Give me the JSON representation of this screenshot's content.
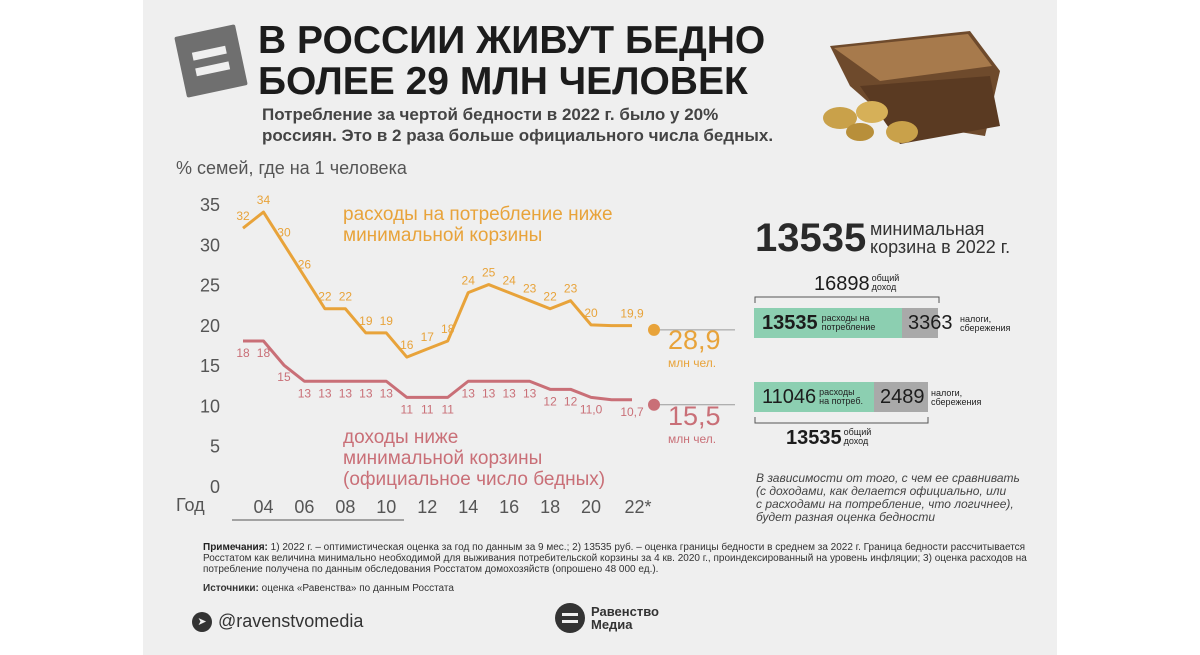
{
  "header": {
    "title": "В РОССИИ ЖИВУТ БЕДНО\nБОЛЕЕ 29 МЛН ЧЕЛОВЕК",
    "subtitle": "Потребление за чертой бедности в 2022 г. было у 20%\nроссиян. Это в 2 раза больше официального числа бедных."
  },
  "colors": {
    "orange": "#e8a33a",
    "red": "#c96f77",
    "green": "#8ccfb1",
    "grey": "#a9a9a9"
  },
  "chart_data": {
    "type": "line",
    "ylabel": "% семей, где на 1 человека",
    "xlabel": "Год",
    "ylim": [
      0,
      35
    ],
    "yticks": [
      "0",
      "5",
      "10",
      "15",
      "20",
      "25",
      "30",
      "35"
    ],
    "xticks": [
      "04",
      "06",
      "08",
      "10",
      "12",
      "14",
      "16",
      "18",
      "20",
      "22*"
    ],
    "x": [
      2003,
      2004,
      2005,
      2006,
      2007,
      2008,
      2009,
      2010,
      2011,
      2012,
      2013,
      2014,
      2015,
      2016,
      2017,
      2018,
      2019,
      2020,
      2021,
      2022
    ],
    "series": [
      {
        "name": "расходы на потребление ниже\nминимальной корзины",
        "color": "#e8a33a",
        "values": [
          32,
          34,
          30,
          26,
          22,
          22,
          19,
          19,
          16,
          17,
          18,
          24,
          25,
          24,
          23,
          22,
          23,
          20,
          19.9,
          19.9
        ],
        "point_labels": [
          "32",
          "34",
          "30",
          "26",
          "22",
          "22",
          "19",
          "19",
          "16",
          "17",
          "18",
          "24",
          "25",
          "24",
          "23",
          "22",
          "23",
          "20",
          "",
          "19,9"
        ],
        "end_value": "28,9",
        "end_unit": "млн чел."
      },
      {
        "name": "доходы ниже\nминимальной корзины\n(официальное число бедных)",
        "color": "#c96f77",
        "values": [
          18,
          18,
          15,
          13,
          13,
          13,
          13,
          13,
          11,
          11,
          11,
          13,
          13,
          13,
          13,
          12,
          12,
          11.0,
          10.7,
          10.7
        ],
        "point_labels": [
          "18",
          "18",
          "15",
          "13",
          "13",
          "13",
          "13",
          "13",
          "11",
          "11",
          "11",
          "13",
          "13",
          "13",
          "13",
          "12",
          "12",
          "11,0",
          "",
          "10,7"
        ],
        "end_value": "15,5",
        "end_unit": "млн чел."
      }
    ]
  },
  "side": {
    "big_value": "13535",
    "big_caption": "минимальная\nкорзина в 2022 г.",
    "scenario1": {
      "total": "16898",
      "total_caption": "общий\nдоход",
      "consumption": "13535",
      "consumption_caption": "расходы на\nпотребление",
      "other": "3363",
      "other_caption": "налоги,\nсбережения"
    },
    "scenario2": {
      "consumption": "11046",
      "consumption_caption": "расходы\nна потреб.",
      "other": "2489",
      "other_caption": "налоги,\nсбережения",
      "total": "13535",
      "total_caption": "общий\nдоход"
    },
    "note": "В зависимости от того, с чем ее сравнивать\n(с доходами, как делается официально, или\nс расходами на потребление, что логичнее),\nбудет разная оценка бедности"
  },
  "footer": {
    "notes_label": "Примечания:",
    "notes_text": "1) 2022 г. – оптимистическая оценка за год по данным за 9 мес.; 2) 13535 руб. – оценка границы бедности в среднем за 2022 г. Граница бедности рассчитывается Росстатом как величина минимально необходимой для выживания потребительской корзины за 4 кв. 2020 г., проиндексированный на уровень инфляции; 3) оценка расходов на потребление получена по данным обследования Росстатом домохозяйств (опрошено 48 000 ед.).",
    "sources_label": "Источники:",
    "sources_text": "оценка «Равенства» по данным Росстата",
    "telegram_handle": "@ravenstvomedia",
    "brand_name": "Равенство\nМедиа"
  }
}
